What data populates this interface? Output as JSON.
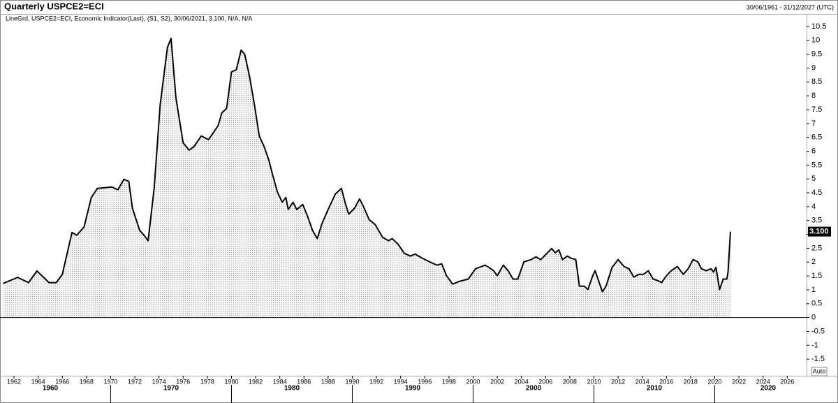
{
  "chart_data": {
    "type": "area",
    "title": "Quarterly USPCE2=ECI",
    "date_range": "30/06/1961 - 31/12/2027 (UTC)",
    "legend_text": "LineGrd, USPCE2=ECI, Economic Indicator(Last), (S1, S2), 30/06/2021, 3.100, N/A, N/A",
    "color": "#000000",
    "x": [
      1961.1,
      1962.3,
      1963.2,
      1963.9,
      1964.9,
      1965.5,
      1966.0,
      1966.8,
      1967.2,
      1967.8,
      1968.4,
      1968.9,
      1970.1,
      1970.6,
      1971.1,
      1971.5,
      1971.8,
      1972.4,
      1972.8,
      1973.1,
      1973.6,
      1974.1,
      1974.7,
      1975.0,
      1975.4,
      1976.0,
      1976.5,
      1976.9,
      1977.5,
      1978.1,
      1978.5,
      1978.9,
      1979.2,
      1979.6,
      1980.0,
      1980.4,
      1980.8,
      1981.1,
      1981.5,
      1981.9,
      1982.3,
      1982.7,
      1983.1,
      1983.4,
      1983.8,
      1984.2,
      1984.5,
      1984.7,
      1985.1,
      1985.4,
      1985.9,
      1986.3,
      1986.7,
      1987.1,
      1987.5,
      1988.0,
      1988.6,
      1989.1,
      1989.4,
      1989.7,
      1990.2,
      1990.6,
      1990.9,
      1991.4,
      1991.9,
      1992.5,
      1993.0,
      1993.3,
      1993.8,
      1994.3,
      1994.8,
      1995.2,
      1995.8,
      1996.4,
      1997.0,
      1997.4,
      1997.8,
      1998.3,
      1998.9,
      1999.6,
      2000.2,
      2001.0,
      2001.3,
      2001.7,
      2002.0,
      2002.5,
      2002.9,
      2003.3,
      2003.7,
      2004.2,
      2004.8,
      2005.2,
      2005.6,
      2006.0,
      2006.5,
      2006.8,
      2007.1,
      2007.4,
      2007.8,
      2008.1,
      2008.5,
      2008.8,
      2009.2,
      2009.5,
      2009.9,
      2010.1,
      2010.4,
      2010.7,
      2011.0,
      2011.5,
      2012.0,
      2012.5,
      2012.9,
      2013.3,
      2013.7,
      2014.1,
      2014.5,
      2014.9,
      2015.3,
      2015.6,
      2016.0,
      2016.4,
      2016.9,
      2017.4,
      2017.8,
      2018.2,
      2018.6,
      2018.9,
      2019.3,
      2019.7,
      2019.9,
      2020.1,
      2020.4,
      2020.7,
      2021.0,
      2021.1,
      2021.3
    ],
    "values": [
      1.23,
      1.45,
      1.26,
      1.68,
      1.26,
      1.26,
      1.56,
      3.07,
      2.97,
      3.27,
      4.33,
      4.66,
      4.71,
      4.61,
      4.99,
      4.91,
      3.95,
      3.15,
      2.95,
      2.77,
      4.66,
      7.68,
      9.75,
      10.07,
      7.93,
      6.3,
      6.04,
      6.17,
      6.55,
      6.42,
      6.67,
      6.93,
      7.38,
      7.55,
      8.86,
      8.94,
      9.65,
      9.49,
      8.69,
      7.68,
      6.55,
      6.17,
      5.67,
      5.16,
      4.53,
      4.16,
      4.33,
      3.9,
      4.16,
      3.9,
      4.08,
      3.65,
      3.15,
      2.85,
      3.4,
      3.9,
      4.46,
      4.66,
      4.16,
      3.73,
      3.95,
      4.28,
      4.03,
      3.53,
      3.35,
      2.9,
      2.77,
      2.85,
      2.64,
      2.32,
      2.22,
      2.29,
      2.14,
      2.01,
      1.89,
      1.94,
      1.51,
      1.21,
      1.31,
      1.39,
      1.76,
      1.89,
      1.81,
      1.69,
      1.51,
      1.89,
      1.69,
      1.39,
      1.39,
      2.01,
      2.09,
      2.19,
      2.09,
      2.27,
      2.49,
      2.34,
      2.44,
      2.09,
      2.22,
      2.14,
      2.09,
      1.13,
      1.13,
      1.01,
      1.51,
      1.69,
      1.31,
      0.93,
      1.13,
      1.81,
      2.09,
      1.84,
      1.76,
      1.46,
      1.56,
      1.56,
      1.69,
      1.39,
      1.33,
      1.26,
      1.51,
      1.69,
      1.84,
      1.56,
      1.76,
      2.09,
      2.01,
      1.76,
      1.69,
      1.76,
      1.64,
      1.81,
      1.01,
      1.39,
      1.39,
      1.64,
      3.1
    ],
    "xlim": [
      1961.13,
      2027.6
    ],
    "xticks": [
      1962,
      1964,
      1966,
      1968,
      1970,
      1972,
      1974,
      1976,
      1978,
      1980,
      1982,
      1984,
      1986,
      1988,
      1990,
      1992,
      1994,
      1996,
      1998,
      2000,
      2002,
      2004,
      2006,
      2008,
      2010,
      2012,
      2014,
      2016,
      2018,
      2020,
      2022,
      2024,
      2026
    ],
    "decade_ticks": [
      1960,
      1970,
      1980,
      1990,
      2000,
      2010,
      2020
    ],
    "ylim": [
      -2.1,
      10.7
    ],
    "yticks": [
      -1.5,
      -1,
      -0.5,
      0,
      0.5,
      1,
      1.5,
      2,
      2.5,
      3,
      3.5,
      4,
      4.5,
      5,
      5.5,
      6,
      6.5,
      7,
      7.5,
      8,
      8.5,
      9,
      9.5,
      10,
      10.5
    ],
    "annotations": [
      {
        "value": 3.1,
        "label": "3.100"
      }
    ],
    "auto_button": "Auto"
  }
}
